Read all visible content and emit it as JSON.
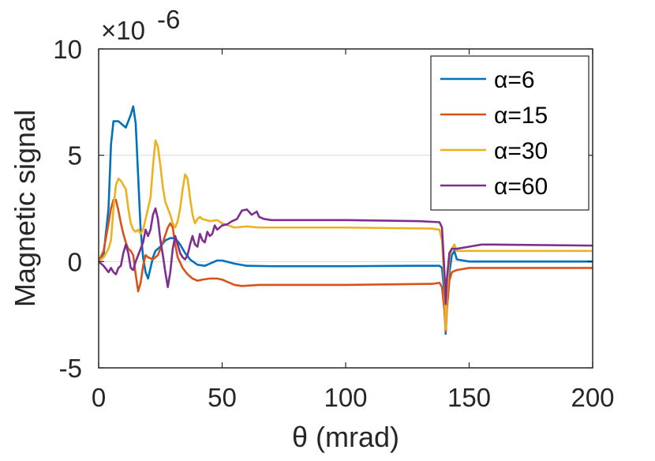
{
  "chart_data": {
    "type": "line",
    "title": "",
    "xlabel": "θ (mrad)",
    "ylabel": "Magnetic signal",
    "y_multiplier": "×10",
    "y_multiplier_exponent": "-6",
    "xlim": [
      0,
      200
    ],
    "ylim": [
      -5,
      10
    ],
    "xticks": [
      0,
      50,
      100,
      150,
      200
    ],
    "xtick_labels": [
      "0",
      "50",
      "100",
      "150",
      "200"
    ],
    "yticks": [
      -5,
      0,
      5,
      10
    ],
    "ytick_labels": [
      "-5",
      "0",
      "5",
      "10"
    ],
    "grid": "horizontal",
    "legend_position": "top-right",
    "series": [
      {
        "name": "α=6",
        "color": "#0072BD",
        "points": [
          [
            0,
            0
          ],
          [
            2,
            0.3
          ],
          [
            4,
            2.5
          ],
          [
            5,
            5.5
          ],
          [
            6,
            6.6
          ],
          [
            8,
            6.6
          ],
          [
            9,
            6.5
          ],
          [
            11,
            6.3
          ],
          [
            13,
            6.9
          ],
          [
            14,
            7.3
          ],
          [
            15,
            6.5
          ],
          [
            16,
            4.0
          ],
          [
            17,
            1.5
          ],
          [
            18,
            0.2
          ],
          [
            19,
            -0.5
          ],
          [
            20,
            -0.8
          ],
          [
            21,
            -0.3
          ],
          [
            22,
            0.2
          ],
          [
            23,
            0.5
          ],
          [
            25,
            0.7
          ],
          [
            27,
            1.0
          ],
          [
            29,
            1.1
          ],
          [
            31,
            1.1
          ],
          [
            33,
            0.8
          ],
          [
            35,
            0.4
          ],
          [
            37,
            0.1
          ],
          [
            40,
            -0.15
          ],
          [
            43,
            -0.2
          ],
          [
            45,
            -0.1
          ],
          [
            48,
            0.05
          ],
          [
            50,
            0.05
          ],
          [
            55,
            -0.1
          ],
          [
            60,
            -0.2
          ],
          [
            70,
            -0.22
          ],
          [
            100,
            -0.22
          ],
          [
            130,
            -0.2
          ],
          [
            138,
            -0.2
          ],
          [
            139,
            -0.3
          ],
          [
            140,
            -1.5
          ],
          [
            140.5,
            -3.4
          ],
          [
            141,
            -2.0
          ],
          [
            142,
            -0.5
          ],
          [
            143,
            0.3
          ],
          [
            144,
            0.5
          ],
          [
            145,
            0.1
          ],
          [
            150,
            0.0
          ],
          [
            170,
            0.0
          ],
          [
            200,
            0.0
          ]
        ]
      },
      {
        "name": "α=15",
        "color": "#D95319",
        "points": [
          [
            0,
            0
          ],
          [
            2,
            0.5
          ],
          [
            4,
            1.8
          ],
          [
            5,
            2.5
          ],
          [
            6,
            2.9
          ],
          [
            7,
            2.9
          ],
          [
            8,
            2.4
          ],
          [
            9,
            1.8
          ],
          [
            10,
            1.3
          ],
          [
            11,
            0.9
          ],
          [
            12,
            0.6
          ],
          [
            13,
            0.5
          ],
          [
            14,
            0.3
          ],
          [
            15,
            -0.6
          ],
          [
            16,
            -1.4
          ],
          [
            17,
            -1.0
          ],
          [
            18,
            -0.2
          ],
          [
            19,
            0.3
          ],
          [
            20,
            0.2
          ],
          [
            22,
            0.1
          ],
          [
            24,
            0.3
          ],
          [
            26,
            0.9
          ],
          [
            28,
            1.6
          ],
          [
            29,
            1.8
          ],
          [
            30,
            1.6
          ],
          [
            31,
            0.8
          ],
          [
            32,
            0.2
          ],
          [
            34,
            -0.3
          ],
          [
            36,
            -0.6
          ],
          [
            38,
            -0.8
          ],
          [
            40,
            -0.9
          ],
          [
            42,
            -0.85
          ],
          [
            45,
            -0.8
          ],
          [
            48,
            -0.8
          ],
          [
            50,
            -0.85
          ],
          [
            55,
            -1.1
          ],
          [
            58,
            -1.15
          ],
          [
            65,
            -1.1
          ],
          [
            100,
            -1.1
          ],
          [
            135,
            -1.05
          ],
          [
            138,
            -1.0
          ],
          [
            139,
            -1.2
          ],
          [
            140,
            -2.3
          ],
          [
            140.5,
            -3.3
          ],
          [
            141,
            -2.2
          ],
          [
            142,
            -0.9
          ],
          [
            143,
            -0.5
          ],
          [
            145,
            -0.4
          ],
          [
            150,
            -0.3
          ],
          [
            200,
            -0.3
          ]
        ]
      },
      {
        "name": "α=30",
        "color": "#EDB120",
        "points": [
          [
            0,
            0
          ],
          [
            2,
            0.2
          ],
          [
            4,
            0.6
          ],
          [
            5,
            1.0
          ],
          [
            6,
            2.5
          ],
          [
            7,
            3.6
          ],
          [
            8,
            3.9
          ],
          [
            9,
            3.8
          ],
          [
            10,
            3.6
          ],
          [
            11,
            3.4
          ],
          [
            12,
            2.5
          ],
          [
            13,
            1.8
          ],
          [
            14,
            1.5
          ],
          [
            15,
            1.4
          ],
          [
            16,
            1.5
          ],
          [
            17,
            1.3
          ],
          [
            18,
            1.5
          ],
          [
            19,
            2.0
          ],
          [
            21,
            3.0
          ],
          [
            22,
            4.5
          ],
          [
            23,
            5.7
          ],
          [
            24,
            5.4
          ],
          [
            25,
            4.5
          ],
          [
            26,
            3.5
          ],
          [
            27,
            2.8
          ],
          [
            28,
            2.5
          ],
          [
            29,
            2.2
          ],
          [
            30,
            1.8
          ],
          [
            31,
            1.6
          ],
          [
            32,
            1.9
          ],
          [
            33,
            2.5
          ],
          [
            34,
            3.4
          ],
          [
            35,
            4.1
          ],
          [
            36,
            3.9
          ],
          [
            37,
            3.0
          ],
          [
            38,
            2.2
          ],
          [
            39,
            1.8
          ],
          [
            40,
            2.0
          ],
          [
            41,
            2.1
          ],
          [
            42,
            2.0
          ],
          [
            45,
            1.9
          ],
          [
            48,
            1.95
          ],
          [
            50,
            1.8
          ],
          [
            55,
            1.6
          ],
          [
            60,
            1.65
          ],
          [
            65,
            1.6
          ],
          [
            100,
            1.6
          ],
          [
            135,
            1.55
          ],
          [
            138,
            1.5
          ],
          [
            139,
            1.0
          ],
          [
            140,
            -1.0
          ],
          [
            140.5,
            -3.2
          ],
          [
            141,
            -1.5
          ],
          [
            142,
            0.2
          ],
          [
            143,
            0.6
          ],
          [
            144,
            0.8
          ],
          [
            145,
            0.5
          ],
          [
            150,
            0.5
          ],
          [
            200,
            0.5
          ]
        ]
      },
      {
        "name": "α=60",
        "color": "#7E2F8E",
        "points": [
          [
            0,
            0
          ],
          [
            2,
            -0.2
          ],
          [
            4,
            -0.5
          ],
          [
            5,
            -0.3
          ],
          [
            6,
            -0.5
          ],
          [
            7,
            -0.6
          ],
          [
            8,
            -0.3
          ],
          [
            9,
            -0.2
          ],
          [
            10,
            0.4
          ],
          [
            11,
            0.8
          ],
          [
            12,
            0.4
          ],
          [
            13,
            -0.3
          ],
          [
            14,
            -0.4
          ],
          [
            15,
            0.0
          ],
          [
            16,
            0.3
          ],
          [
            17,
            0.6
          ],
          [
            18,
            0.9
          ],
          [
            19,
            1.5
          ],
          [
            20,
            1.2
          ],
          [
            21,
            1.5
          ],
          [
            22,
            2.2
          ],
          [
            23,
            2.5
          ],
          [
            24,
            2.0
          ],
          [
            25,
            1.0
          ],
          [
            26,
            0.3
          ],
          [
            27,
            -0.5
          ],
          [
            28,
            -1.2
          ],
          [
            29,
            -0.5
          ],
          [
            30,
            0.6
          ],
          [
            31,
            1.2
          ],
          [
            32,
            0.8
          ],
          [
            33,
            0.4
          ],
          [
            34,
            0.2
          ],
          [
            35,
            0.1
          ],
          [
            36,
            0.3
          ],
          [
            37,
            0.8
          ],
          [
            38,
            1.2
          ],
          [
            39,
            0.8
          ],
          [
            40,
            0.7
          ],
          [
            41,
            1.3
          ],
          [
            42,
            1.0
          ],
          [
            43,
            0.9
          ],
          [
            44,
            1.4
          ],
          [
            45,
            1.2
          ],
          [
            46,
            1.3
          ],
          [
            47,
            1.7
          ],
          [
            48,
            1.5
          ],
          [
            50,
            1.7
          ],
          [
            52,
            1.75
          ],
          [
            54,
            1.9
          ],
          [
            56,
            2.0
          ],
          [
            58,
            2.4
          ],
          [
            60,
            2.45
          ],
          [
            62,
            2.2
          ],
          [
            64,
            2.35
          ],
          [
            65,
            2.1
          ],
          [
            67,
            2.0
          ],
          [
            70,
            1.95
          ],
          [
            100,
            1.95
          ],
          [
            130,
            1.9
          ],
          [
            138,
            1.85
          ],
          [
            139,
            1.6
          ],
          [
            140,
            -0.5
          ],
          [
            140.5,
            -2.0
          ],
          [
            141,
            -0.8
          ],
          [
            142,
            0.4
          ],
          [
            143,
            0.6
          ],
          [
            145,
            0.6
          ],
          [
            150,
            0.7
          ],
          [
            155,
            0.8
          ],
          [
            160,
            0.8
          ],
          [
            200,
            0.75
          ]
        ]
      }
    ]
  }
}
